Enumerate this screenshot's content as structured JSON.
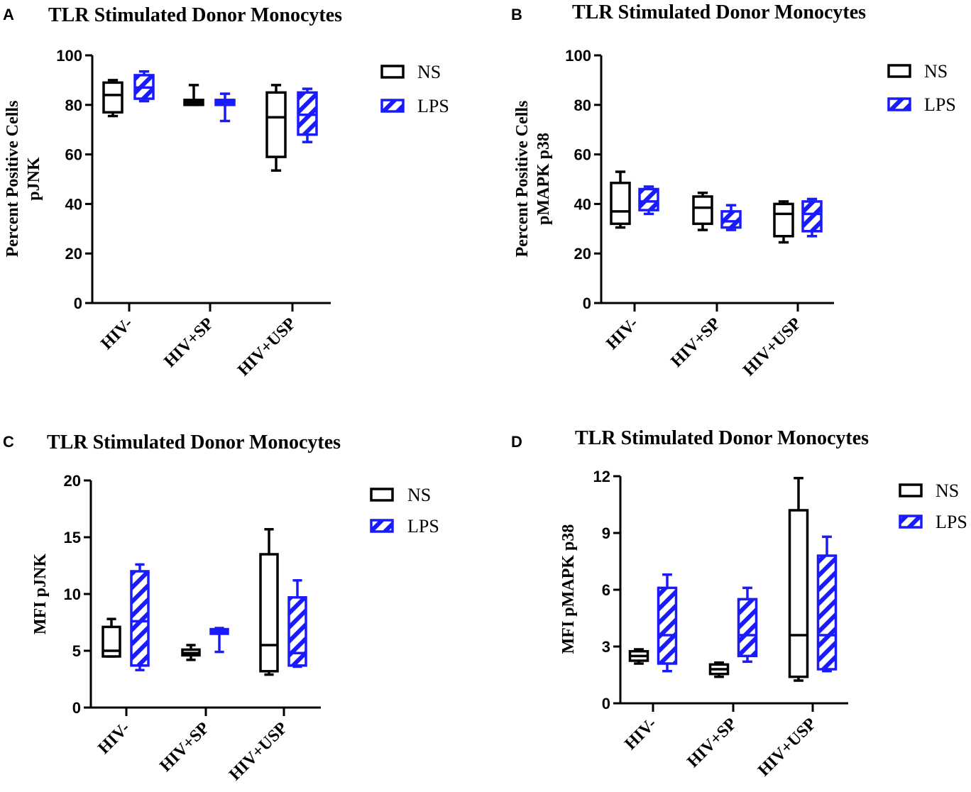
{
  "figure": {
    "panels": [
      "A",
      "B",
      "C",
      "D"
    ]
  },
  "colors": {
    "ns": "#000000",
    "lps": "#1a1aff",
    "axis": "#000000"
  },
  "chart_data": [
    {
      "type": "box",
      "panel": "A",
      "title": "TLR Stimulated Donor Monocytes",
      "ylabel": [
        "Percent Positive Cells",
        "pJNK"
      ],
      "xlabel": "",
      "ylim": [
        0,
        100
      ],
      "yticks": [
        0,
        20,
        40,
        60,
        80,
        100
      ],
      "categories": [
        "HIV-",
        "HIV+SP",
        "HIV+USP"
      ],
      "legend": {
        "position": "top-right",
        "entries": [
          "NS",
          "LPS"
        ]
      },
      "series": [
        {
          "name": "NS",
          "style": "open",
          "boxes": [
            {
              "min": 75.5,
              "q1": 77,
              "median": 84,
              "q3": 89,
              "max": 90
            },
            {
              "min": 80,
              "q1": 80,
              "median": 81,
              "q3": 82,
              "max": 88
            },
            {
              "min": 53.5,
              "q1": 59,
              "median": 75,
              "q3": 85,
              "max": 88
            }
          ]
        },
        {
          "name": "LPS",
          "style": "hatched",
          "boxes": [
            {
              "min": 81.5,
              "q1": 82.5,
              "median": 87,
              "q3": 92,
              "max": 93.5
            },
            {
              "min": 73.5,
              "q1": 80,
              "median": 81,
              "q3": 82,
              "max": 84.5
            },
            {
              "min": 65,
              "q1": 68,
              "median": 76,
              "q3": 85,
              "max": 86.5
            }
          ]
        }
      ]
    },
    {
      "type": "box",
      "panel": "B",
      "title": "TLR Stimulated Donor Monocytes",
      "ylabel": [
        "Percent Positive Cells",
        "pMAPK p38"
      ],
      "xlabel": "",
      "ylim": [
        0,
        100
      ],
      "yticks": [
        0,
        20,
        40,
        60,
        80,
        100
      ],
      "categories": [
        "HIV-",
        "HIV+SP",
        "HIV+USP"
      ],
      "legend": {
        "position": "top-right",
        "entries": [
          "NS",
          "LPS"
        ]
      },
      "series": [
        {
          "name": "NS",
          "style": "open",
          "boxes": [
            {
              "min": 30.5,
              "q1": 32,
              "median": 37,
              "q3": 48.5,
              "max": 53
            },
            {
              "min": 29.5,
              "q1": 32,
              "median": 38.5,
              "q3": 43,
              "max": 44.5
            },
            {
              "min": 24.5,
              "q1": 27,
              "median": 36,
              "q3": 40,
              "max": 41
            }
          ]
        },
        {
          "name": "LPS",
          "style": "hatched",
          "boxes": [
            {
              "min": 36,
              "q1": 37.5,
              "median": 41,
              "q3": 46,
              "max": 47
            },
            {
              "min": 29.5,
              "q1": 30.5,
              "median": 33,
              "q3": 37,
              "max": 39.5
            },
            {
              "min": 27,
              "q1": 29,
              "median": 36,
              "q3": 41,
              "max": 42
            }
          ]
        }
      ]
    },
    {
      "type": "box",
      "panel": "C",
      "title": "TLR Stimulated Donor Monocytes",
      "ylabel": [
        "MFI pJNK"
      ],
      "xlabel": "",
      "ylim": [
        0,
        20
      ],
      "yticks": [
        0,
        5,
        10,
        15,
        20
      ],
      "categories": [
        "HIV-",
        "HIV+SP",
        "HIV+USP"
      ],
      "legend": {
        "position": "top-right",
        "entries": [
          "NS",
          "LPS"
        ]
      },
      "series": [
        {
          "name": "NS",
          "style": "open",
          "boxes": [
            {
              "min": 4.5,
              "q1": 4.5,
              "median": 5,
              "q3": 7.1,
              "max": 7.8
            },
            {
              "min": 4.2,
              "q1": 4.6,
              "median": 4.8,
              "q3": 5.1,
              "max": 5.5
            },
            {
              "min": 2.9,
              "q1": 3.2,
              "median": 5.5,
              "q3": 13.5,
              "max": 15.7
            }
          ]
        },
        {
          "name": "LPS",
          "style": "hatched",
          "boxes": [
            {
              "min": 3.3,
              "q1": 3.7,
              "median": 7.6,
              "q3": 12,
              "max": 12.6
            },
            {
              "min": 4.9,
              "q1": 6.5,
              "median": 6.7,
              "q3": 6.9,
              "max": 7
            },
            {
              "min": 3.6,
              "q1": 3.7,
              "median": 4.8,
              "q3": 9.7,
              "max": 11.2
            }
          ]
        }
      ]
    },
    {
      "type": "box",
      "panel": "D",
      "title": "TLR Stimulated Donor Monocytes",
      "ylabel": [
        "MFI pMAPK p38"
      ],
      "xlabel": "",
      "ylim": [
        0,
        12
      ],
      "yticks": [
        0,
        3,
        6,
        9,
        12
      ],
      "categories": [
        "HIV-",
        "HIV+SP",
        "HIV+USP"
      ],
      "legend": {
        "position": "top-right",
        "entries": [
          "NS",
          "LPS"
        ]
      },
      "series": [
        {
          "name": "NS",
          "style": "open",
          "boxes": [
            {
              "min": 2.1,
              "q1": 2.25,
              "median": 2.5,
              "q3": 2.75,
              "max": 2.85
            },
            {
              "min": 1.4,
              "q1": 1.55,
              "median": 1.8,
              "q3": 2.05,
              "max": 2.15
            },
            {
              "min": 1.2,
              "q1": 1.4,
              "median": 3.6,
              "q3": 10.2,
              "max": 11.9
            }
          ]
        },
        {
          "name": "LPS",
          "style": "hatched",
          "boxes": [
            {
              "min": 1.7,
              "q1": 2.1,
              "median": 3.6,
              "q3": 6.1,
              "max": 6.8
            },
            {
              "min": 2.2,
              "q1": 2.5,
              "median": 3.6,
              "q3": 5.5,
              "max": 6.1
            },
            {
              "min": 1.7,
              "q1": 1.8,
              "median": 3.6,
              "q3": 7.8,
              "max": 8.8
            }
          ]
        }
      ]
    }
  ]
}
